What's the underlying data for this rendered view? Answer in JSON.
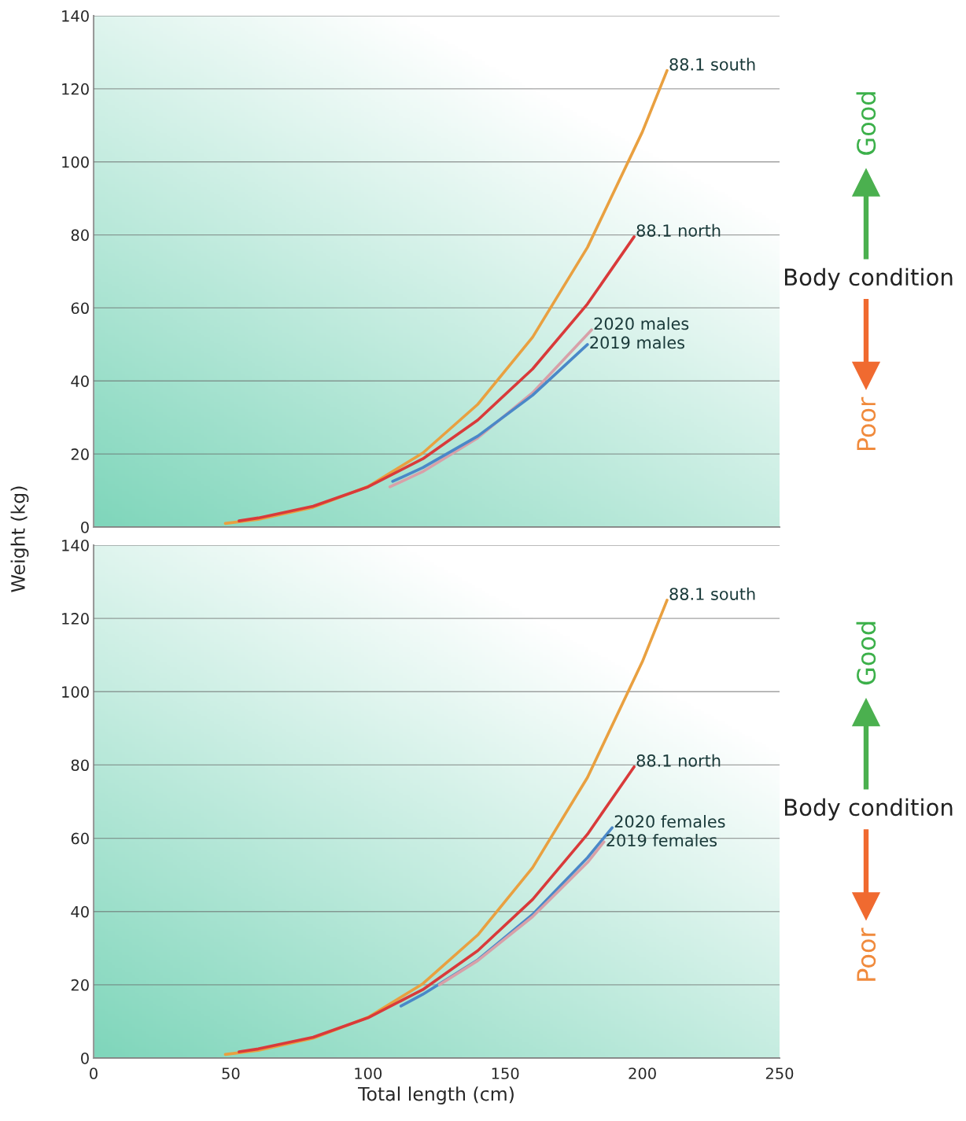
{
  "chart_data": [
    {
      "type": "line",
      "ylabel": "Weight (kg)",
      "xlim": [
        0,
        250
      ],
      "xticks": [
        0,
        50,
        100,
        150,
        200,
        250
      ],
      "ylim": [
        0,
        140
      ],
      "yticks": [
        0,
        20,
        40,
        60,
        80,
        100,
        120,
        140
      ],
      "grid": "y",
      "legend": false,
      "tick_labels": "y",
      "line_style": "solid",
      "marker": "none",
      "series": [
        {
          "name": "88.1 south",
          "color": "#e9a040",
          "x": [
            48,
            60,
            80,
            100,
            120,
            140,
            160,
            180,
            200,
            209
          ],
          "values": [
            1.0,
            2.1,
            5.4,
            11.1,
            20.3,
            33.6,
            52.0,
            76.6,
            108.2,
            125
          ]
        },
        {
          "name": "88.1 north",
          "color": "#d93a3a",
          "x": [
            53,
            60,
            80,
            100,
            120,
            140,
            160,
            180,
            197
          ],
          "values": [
            1.7,
            2.5,
            5.7,
            11.0,
            18.7,
            29.3,
            43.3,
            61.1,
            79.5
          ]
        },
        {
          "name": "2020 males",
          "color": "#d8a0a8",
          "x": [
            108,
            120,
            140,
            160,
            181.5
          ],
          "values": [
            11,
            15.2,
            24.4,
            36.8,
            54
          ]
        },
        {
          "name": "2019 males",
          "color": "#4a88c8",
          "x": [
            109,
            120,
            140,
            160,
            180
          ],
          "values": [
            12.5,
            16.3,
            24.9,
            36.1,
            50
          ]
        }
      ],
      "annotations": [
        "Good",
        "Body condition",
        "Poor"
      ]
    },
    {
      "type": "line",
      "xlabel": "Total length (cm)",
      "xlim": [
        0,
        250
      ],
      "xticks": [
        0,
        50,
        100,
        150,
        200,
        250
      ],
      "ylim": [
        0,
        140
      ],
      "yticks": [
        0,
        20,
        40,
        60,
        80,
        100,
        120,
        140
      ],
      "grid": "y",
      "legend": false,
      "line_style": "solid",
      "marker": "none",
      "series": [
        {
          "name": "88.1 south",
          "color": "#e9a040",
          "x": [
            48,
            60,
            80,
            100,
            120,
            140,
            160,
            180,
            200,
            209
          ],
          "values": [
            1.0,
            2.1,
            5.4,
            11.1,
            20.3,
            33.6,
            52.0,
            76.6,
            108.2,
            125
          ]
        },
        {
          "name": "88.1 north",
          "color": "#d93a3a",
          "x": [
            53,
            60,
            80,
            100,
            120,
            140,
            160,
            180,
            197
          ],
          "values": [
            1.7,
            2.5,
            5.7,
            11.0,
            18.7,
            29.3,
            43.3,
            61.1,
            79.5
          ]
        },
        {
          "name": "2020 females",
          "color": "#4a88c8",
          "x": [
            112,
            120,
            140,
            160,
            180,
            189
          ],
          "values": [
            14.2,
            17.4,
            26.8,
            39.2,
            54.7,
            62.9
          ]
        },
        {
          "name": "2019 females",
          "color": "#d8a0a8",
          "x": [
            126,
            140,
            160,
            180,
            186
          ],
          "values": [
            20,
            26.6,
            38.6,
            53.4,
            59
          ]
        }
      ],
      "annotations": [
        "Good",
        "Body condition",
        "Poor"
      ]
    }
  ]
}
